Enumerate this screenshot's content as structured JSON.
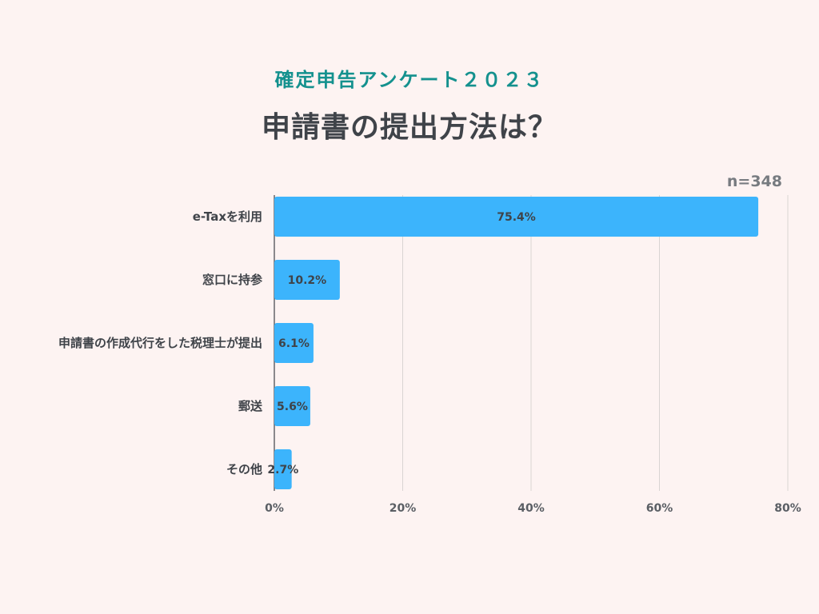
{
  "header": {
    "subtitle": "確定申告アンケート２０２３",
    "title": "申請書の提出方法は？"
  },
  "chart_data": {
    "type": "bar",
    "orientation": "horizontal",
    "sample_size": "n=348",
    "categories": [
      "e-Taxを利用",
      "窓口に持参",
      "申請書の作成代行をした税理士が提出",
      "郵送",
      "その他"
    ],
    "values": [
      75.4,
      10.2,
      6.1,
      5.6,
      2.7
    ],
    "data_labels": [
      "75.4%",
      "10.2%",
      "6.1%",
      "5.6%",
      "2.7%"
    ],
    "xlim": [
      0,
      80
    ],
    "x_ticks": [
      0,
      20,
      40,
      60,
      80
    ],
    "x_tick_labels": [
      "0%",
      "20%",
      "40%",
      "60%",
      "80%"
    ],
    "grid": true,
    "colors": {
      "bar": "#3cb4fc",
      "grid": "#d9d4d3",
      "axis": "#3f4349"
    }
  }
}
